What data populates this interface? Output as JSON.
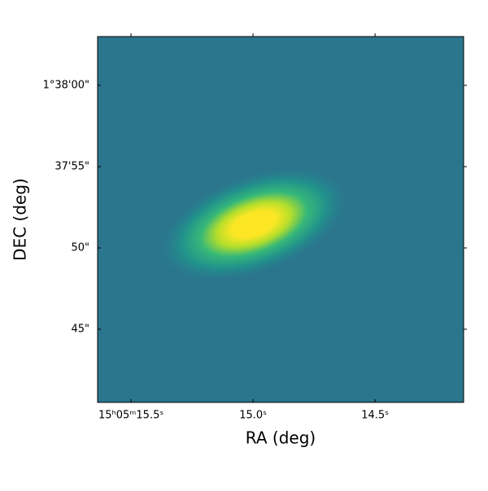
{
  "chart_data": {
    "type": "image",
    "x_label": "RA (deg)",
    "y_label": "DEC (deg)",
    "xlim": [
      15.637,
      14.137
    ],
    "xticks": [
      {
        "value": 15.5,
        "label": "15ʰ05ᵐ15.5ˢ"
      },
      {
        "value": 15.0,
        "label": "15.0ˢ"
      },
      {
        "value": 14.5,
        "label": "14.5ˢ"
      }
    ],
    "ylim": [
      40.5,
      63
    ],
    "yticks": [
      {
        "value": 60,
        "label": "1°38'00\""
      },
      {
        "value": 55,
        "label": "37'55\""
      },
      {
        "value": 50,
        "label": "50\""
      },
      {
        "value": 45,
        "label": "45\""
      }
    ],
    "grid": false
  }
}
